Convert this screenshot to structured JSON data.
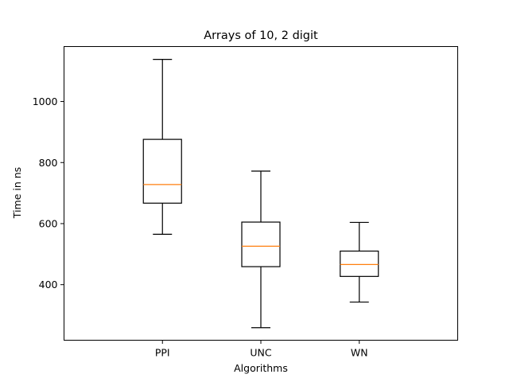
{
  "chart_data": {
    "type": "box",
    "title": "Arrays of 10, 2 digit",
    "xlabel": "Algorithms",
    "ylabel": "Time in ns",
    "categories": [
      "PPI",
      "UNC",
      "WN"
    ],
    "boxes": [
      {
        "category": "PPI",
        "whisker_low": 565,
        "q1": 667,
        "median": 728,
        "q3": 876,
        "whisker_high": 1138
      },
      {
        "category": "UNC",
        "whisker_low": 259,
        "q1": 459,
        "median": 526,
        "q3": 605,
        "whisker_high": 772
      },
      {
        "category": "WN",
        "whisker_low": 343,
        "q1": 427,
        "median": 466,
        "q3": 510,
        "whisker_high": 604
      }
    ],
    "y_ticks": [
      400,
      600,
      800,
      1000
    ],
    "ylim": [
      218,
      1180
    ],
    "grid": false,
    "colors": {
      "box": "#000000",
      "median": "#ff7f0e",
      "axes": "#000000",
      "background": "#ffffff"
    }
  }
}
